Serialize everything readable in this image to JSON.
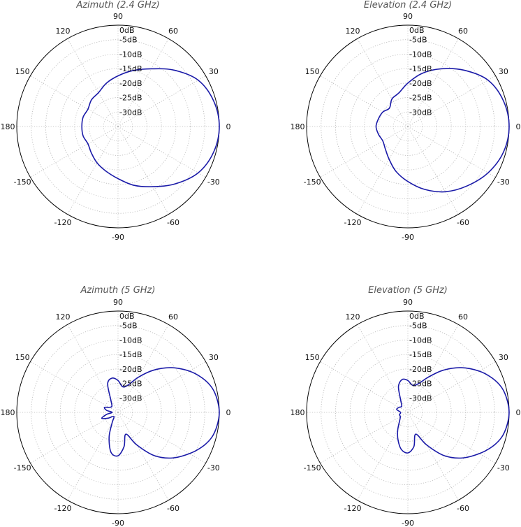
{
  "chart_data": [
    {
      "type": "polar-line",
      "title": "Azimuth (2.4 GHz)",
      "radial_unit": "dB",
      "radial_range": [
        -35,
        0
      ],
      "radial_ticks": [
        0,
        -5,
        -10,
        -15,
        -20,
        -25,
        -30
      ],
      "radial_tick_labels": [
        "0dB",
        "-5dB",
        "-10dB",
        "-15dB",
        "-20dB",
        "-25dB",
        "-30dB"
      ],
      "angle_ticks": [
        90,
        60,
        30,
        0,
        -30,
        -60,
        -90,
        -120,
        -150,
        180,
        150,
        120
      ],
      "angle_tick_labels": [
        "90",
        "60",
        "30",
        "0",
        "-30",
        "-60",
        "-90",
        "-120",
        "-150",
        "180",
        "150",
        "120"
      ],
      "grid": true,
      "series": [
        {
          "color": "#1a1aa8",
          "points": [
            [
              0,
              0
            ],
            [
              15,
              -0.8
            ],
            [
              30,
              -3
            ],
            [
              45,
              -7.5
            ],
            [
              60,
              -12
            ],
            [
              75,
              -15
            ],
            [
              90,
              -17.5
            ],
            [
              105,
              -19.5
            ],
            [
              120,
              -21.5
            ],
            [
              135,
              -22
            ],
            [
              150,
              -23
            ],
            [
              165,
              -22.5
            ],
            [
              180,
              -22.5
            ],
            [
              -165,
              -22.5
            ],
            [
              -150,
              -23
            ],
            [
              -135,
              -22
            ],
            [
              -120,
              -20.5
            ],
            [
              -105,
              -19
            ],
            [
              -90,
              -17
            ],
            [
              -75,
              -14
            ],
            [
              -60,
              -11
            ],
            [
              -45,
              -7
            ],
            [
              -30,
              -3
            ],
            [
              -15,
              -0.8
            ]
          ]
        }
      ]
    },
    {
      "type": "polar-line",
      "title": "Elevation (2.4 GHz)",
      "radial_unit": "dB",
      "radial_range": [
        -35,
        0
      ],
      "radial_ticks": [
        0,
        -5,
        -10,
        -15,
        -20,
        -25,
        -30
      ],
      "radial_tick_labels": [
        "0dB",
        "-5dB",
        "-10dB",
        "-15dB",
        "-20dB",
        "-25dB",
        "-30dB"
      ],
      "angle_ticks": [
        90,
        60,
        30,
        0,
        -30,
        -60,
        -90,
        -120,
        -150,
        180,
        150,
        120
      ],
      "angle_tick_labels": [
        "90",
        "60",
        "30",
        "0",
        "-30",
        "-60",
        "-90",
        "-120",
        "-150",
        "180",
        "150",
        "120"
      ],
      "grid": true,
      "series": [
        {
          "color": "#1a1aa8",
          "points": [
            [
              0,
              0
            ],
            [
              15,
              -0.8
            ],
            [
              30,
              -3
            ],
            [
              45,
              -7.5
            ],
            [
              60,
              -12
            ],
            [
              75,
              -16
            ],
            [
              90,
              -20
            ],
            [
              105,
              -23
            ],
            [
              120,
              -24
            ],
            [
              135,
              -26
            ],
            [
              150,
              -25
            ],
            [
              165,
              -24.5
            ],
            [
              180,
              -24
            ],
            [
              -165,
              -24.5
            ],
            [
              -150,
              -25
            ],
            [
              -135,
              -24
            ],
            [
              -120,
              -22
            ],
            [
              -105,
              -19
            ],
            [
              -90,
              -16
            ],
            [
              -75,
              -12.5
            ],
            [
              -60,
              -9
            ],
            [
              -45,
              -6
            ],
            [
              -30,
              -3
            ],
            [
              -15,
              -0.8
            ]
          ]
        }
      ]
    },
    {
      "type": "polar-line",
      "title": "Azimuth (5 GHz)",
      "radial_unit": "dB",
      "radial_range": [
        -35,
        0
      ],
      "radial_ticks": [
        0,
        -5,
        -10,
        -15,
        -20,
        -25,
        -30
      ],
      "radial_tick_labels": [
        "0dB",
        "-5dB",
        "-10dB",
        "-15dB",
        "-20dB",
        "-25dB",
        "-30dB"
      ],
      "angle_ticks": [
        90,
        60,
        30,
        0,
        -30,
        -60,
        -90,
        -120,
        -150,
        180,
        150,
        120
      ],
      "angle_tick_labels": [
        "90",
        "60",
        "30",
        "0",
        "-30",
        "-60",
        "-90",
        "-120",
        "-150",
        "180",
        "150",
        "120"
      ],
      "grid": true,
      "series": [
        {
          "color": "#1a1aa8",
          "points": [
            [
              0,
              0
            ],
            [
              8,
              -0.5
            ],
            [
              15,
              -1.5
            ],
            [
              22,
              -3.5
            ],
            [
              30,
              -6.5
            ],
            [
              40,
              -11
            ],
            [
              50,
              -16
            ],
            [
              60,
              -21
            ],
            [
              70,
              -25
            ],
            [
              80,
              -26
            ],
            [
              90,
              -24
            ],
            [
              100,
              -23
            ],
            [
              110,
              -24.5
            ],
            [
              120,
              -30
            ],
            [
              135,
              -32
            ],
            [
              150,
              -31.5
            ],
            [
              160,
              -30
            ],
            [
              170,
              -31
            ],
            [
              180,
              -33
            ],
            [
              -170,
              -31
            ],
            [
              -160,
              -29
            ],
            [
              -150,
              -31
            ],
            [
              -135,
              -33
            ],
            [
              -120,
              -31
            ],
            [
              -110,
              -26
            ],
            [
              -100,
              -21
            ],
            [
              -90,
              -20
            ],
            [
              -80,
              -23
            ],
            [
              -70,
              -27
            ],
            [
              -60,
              -22
            ],
            [
              -50,
              -15.5
            ],
            [
              -40,
              -10.5
            ],
            [
              -30,
              -6.5
            ],
            [
              -22,
              -3.5
            ],
            [
              -15,
              -1.5
            ],
            [
              -8,
              -0.5
            ]
          ]
        }
      ]
    },
    {
      "type": "polar-line",
      "title": "Elevation (5 GHz)",
      "radial_unit": "dB",
      "radial_range": [
        -35,
        0
      ],
      "radial_ticks": [
        0,
        -5,
        -10,
        -15,
        -20,
        -25,
        -30
      ],
      "radial_tick_labels": [
        "0dB",
        "-5dB",
        "-10dB",
        "-15dB",
        "-20dB",
        "-25dB",
        "-30dB"
      ],
      "angle_ticks": [
        90,
        60,
        30,
        0,
        -30,
        -60,
        -90,
        -120,
        -150,
        180,
        150,
        120
      ],
      "angle_tick_labels": [
        "90",
        "60",
        "30",
        "0",
        "-30",
        "-60",
        "-90",
        "-120",
        "-150",
        "180",
        "150",
        "120"
      ],
      "grid": true,
      "series": [
        {
          "color": "#1a1aa8",
          "points": [
            [
              0,
              0
            ],
            [
              8,
              -0.5
            ],
            [
              15,
              -1.5
            ],
            [
              22,
              -3.5
            ],
            [
              30,
              -6.5
            ],
            [
              40,
              -11
            ],
            [
              50,
              -16
            ],
            [
              60,
              -21
            ],
            [
              70,
              -24.5
            ],
            [
              80,
              -25.5
            ],
            [
              90,
              -24
            ],
            [
              100,
              -23.5
            ],
            [
              110,
              -25.5
            ],
            [
              120,
              -30
            ],
            [
              135,
              -32
            ],
            [
              150,
              -31.5
            ],
            [
              165,
              -31
            ],
            [
              180,
              -32.5
            ],
            [
              -165,
              -32
            ],
            [
              -150,
              -32
            ],
            [
              -135,
              -31
            ],
            [
              -120,
              -28
            ],
            [
              -110,
              -25
            ],
            [
              -100,
              -22
            ],
            [
              -90,
              -21
            ],
            [
              -80,
              -23
            ],
            [
              -70,
              -27
            ],
            [
              -60,
              -22
            ],
            [
              -50,
              -15.5
            ],
            [
              -40,
              -10.5
            ],
            [
              -30,
              -6.5
            ],
            [
              -22,
              -3.5
            ],
            [
              -15,
              -1.5
            ],
            [
              -8,
              -0.5
            ]
          ]
        }
      ]
    }
  ]
}
